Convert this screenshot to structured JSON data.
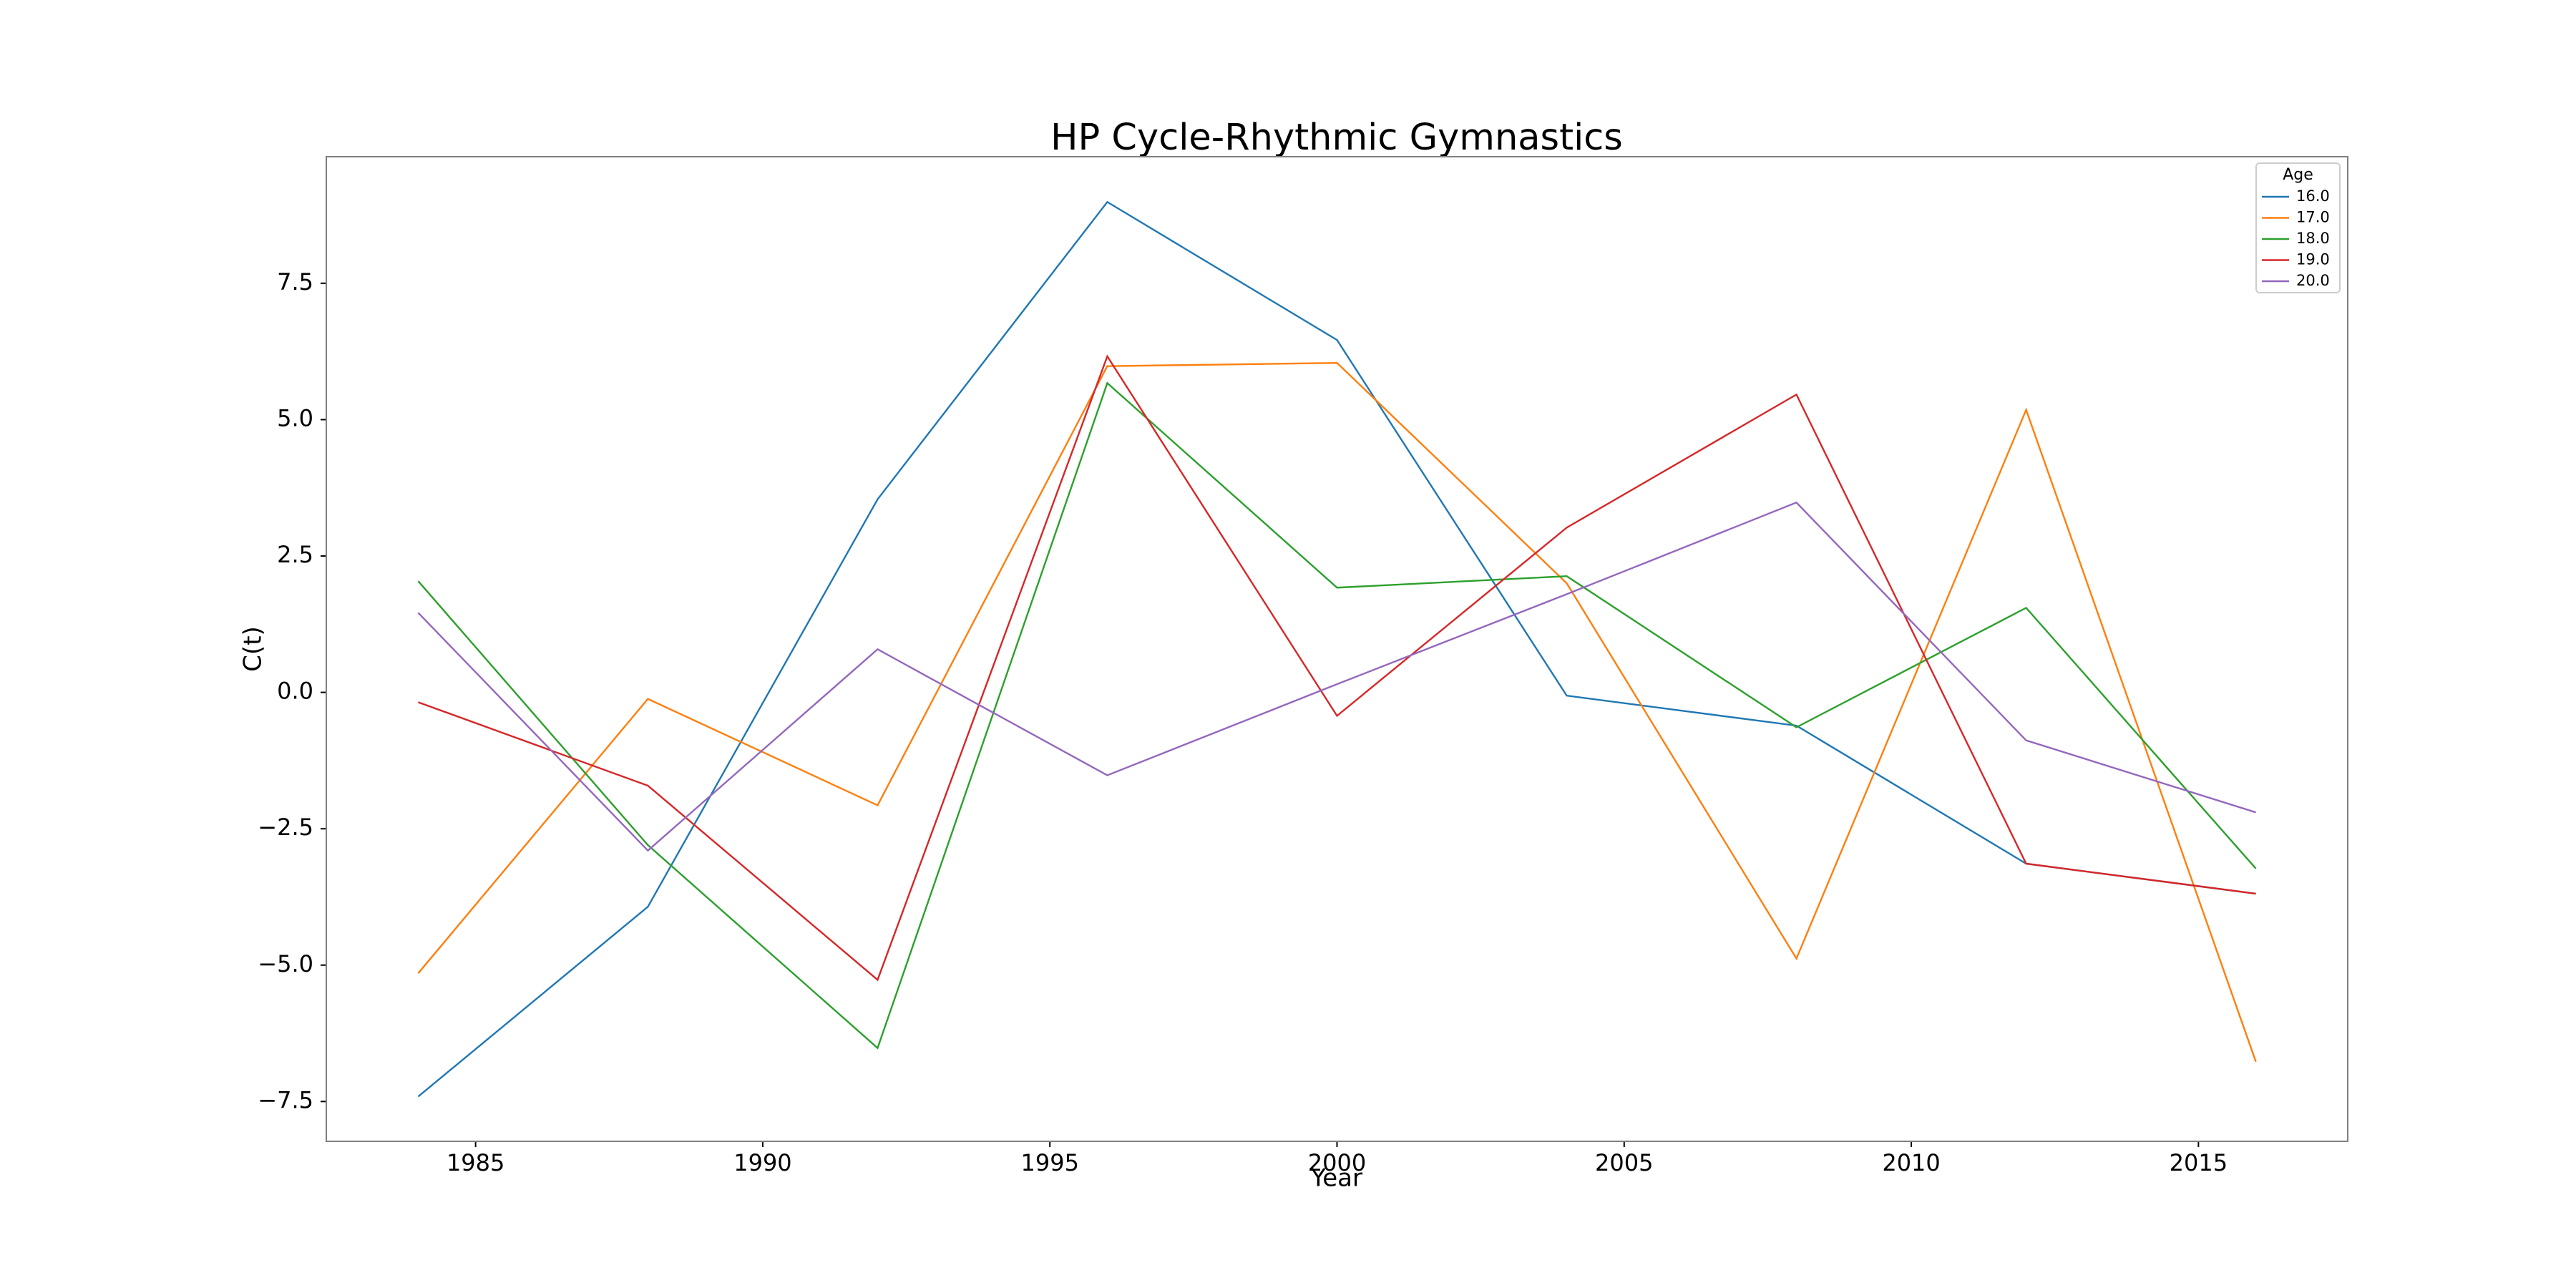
{
  "chart_data": {
    "type": "line",
    "title": "HP Cycle-Rhythmic Gymnastics",
    "x_label": "Year",
    "y_label": "C(t)",
    "x": [
      1984,
      1988,
      1992,
      1996,
      2000,
      2004,
      2008,
      2012,
      2016
    ],
    "series": [
      {
        "name": "16.0",
        "color": "#1f77b4",
        "values": [
          -7.41,
          -3.93,
          3.54,
          8.99,
          6.46,
          -0.06,
          -0.61,
          -3.14,
          -3.69
        ]
      },
      {
        "name": "17.0",
        "color": "#ff7f0e",
        "values": [
          -5.15,
          -0.12,
          -2.07,
          5.98,
          6.04,
          2.0,
          -4.88,
          5.18,
          -6.77
        ]
      },
      {
        "name": "18.0",
        "color": "#2ca02c",
        "values": [
          2.04,
          -2.8,
          -6.52,
          5.67,
          1.92,
          2.13,
          -0.64,
          1.55,
          -3.23
        ]
      },
      {
        "name": "19.0",
        "color": "#d62728",
        "values": [
          -0.18,
          -1.71,
          -5.27,
          6.16,
          -0.43,
          3.02,
          5.46,
          -3.14,
          -3.69
        ]
      },
      {
        "name": "20.0",
        "color": "#9467bd",
        "values": [
          1.46,
          -2.9,
          0.79,
          -1.52,
          0.15,
          1.8,
          3.48,
          -0.88,
          -2.2
        ]
      }
    ],
    "legend_title": "Age",
    "legend": "upper right",
    "xlim": [
      1982.4,
      2017.6
    ],
    "xticks": [
      1985,
      1990,
      1995,
      2000,
      2005,
      2010,
      2015
    ],
    "ylim": [
      -8.23,
      9.82
    ],
    "yticks": [
      {
        "value": -7.5,
        "label": "−7.5"
      },
      {
        "value": -5,
        "label": "−5.0"
      },
      {
        "value": -2.5,
        "label": "−2.5"
      },
      {
        "value": 0,
        "label": "0.0"
      },
      2.5,
      {
        "value": 5,
        "label": "5.0"
      },
      7.5
    ],
    "grid": false
  }
}
